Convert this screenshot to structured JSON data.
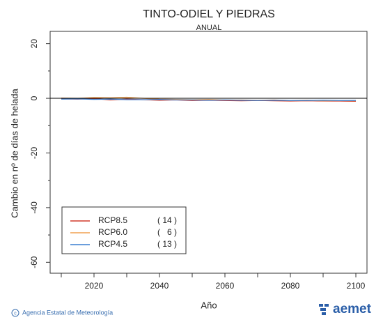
{
  "chart_data": {
    "type": "line",
    "title": "TINTO-ODIEL Y PIEDRAS",
    "subtitle": "ANUAL",
    "x_label": "Año",
    "y_label": "Cambio en nº de días de helada",
    "x": [
      2010,
      2015,
      2020,
      2025,
      2030,
      2035,
      2040,
      2045,
      2050,
      2055,
      2060,
      2065,
      2070,
      2075,
      2080,
      2085,
      2090,
      2095,
      2100
    ],
    "series": [
      {
        "name": "RCP8.5",
        "count_label": "( 14 )",
        "color": "#d03a2a",
        "values": [
          -0.2,
          -0.3,
          -0.1,
          -0.6,
          -0.3,
          -0.5,
          -0.7,
          -0.6,
          -0.8,
          -0.7,
          -0.8,
          -0.9,
          -0.8,
          -0.9,
          -1.0,
          -0.9,
          -1.0,
          -1.0,
          -1.1
        ]
      },
      {
        "name": "RCP6.0",
        "count_label": "(   6 )",
        "color": "#f0a050",
        "values": [
          0.1,
          0.0,
          0.3,
          0.2,
          0.4,
          0.0,
          -0.3,
          -0.4,
          -0.5,
          -0.4,
          -0.6,
          -0.6,
          -0.7,
          -0.6,
          -0.8,
          -0.7,
          -0.9,
          -0.8,
          -0.9
        ]
      },
      {
        "name": "RCP4.5",
        "count_label": "( 13 )",
        "color": "#3a7ed0",
        "values": [
          -0.3,
          -0.2,
          -0.4,
          -0.3,
          -0.5,
          -0.5,
          -0.4,
          -0.6,
          -0.6,
          -0.7,
          -0.6,
          -0.7,
          -0.8,
          -0.7,
          -0.8,
          -0.8,
          -0.7,
          -0.8,
          -0.8
        ]
      }
    ],
    "xlim": [
      2006.6,
      2103.4
    ],
    "ylim": [
      -64,
      24.5
    ],
    "xticks": [
      2020,
      2040,
      2060,
      2080,
      2100
    ],
    "xminor_ticks": [
      2010,
      2030,
      2050,
      2070,
      2090
    ],
    "yticks": [
      -60,
      -40,
      -20,
      0,
      20
    ],
    "yminor_ticks": [
      -50,
      -30,
      -10,
      10
    ],
    "reference_line": 0,
    "legend": "lower left"
  },
  "footer": {
    "credit": "Agencia Estatal de Meteorología",
    "logo": "aemet"
  }
}
